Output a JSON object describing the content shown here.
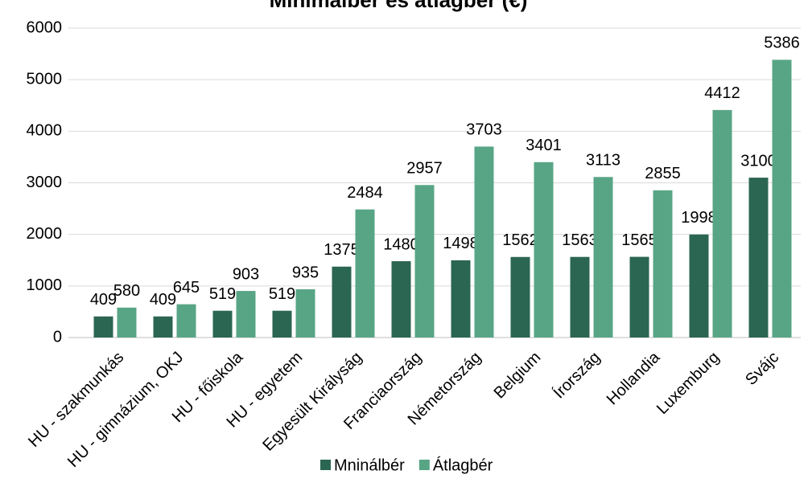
{
  "chart_data": {
    "type": "bar",
    "title": "Minimálbér és átlagbér (€)",
    "categories": [
      "HU - szakmunkás",
      "HU - gimnázium, OKJ",
      "HU - főiskola",
      "HU - egyetem",
      "Egyesült Királyság",
      "Franciaország",
      "Németország",
      "Belgium",
      "Írország",
      "Hollandia",
      "Luxemburg",
      "Svájc"
    ],
    "series": [
      {
        "name": "Mninálbér",
        "color": "#2b6652",
        "values": [
          409,
          409,
          519,
          519,
          1375,
          1480,
          1498,
          1562,
          1563,
          1565,
          1998,
          3100
        ]
      },
      {
        "name": "Átlagbér",
        "color": "#58a586",
        "values": [
          580,
          645,
          903,
          935,
          2484,
          2957,
          3703,
          3401,
          3113,
          2855,
          4412,
          5386
        ]
      }
    ],
    "ylim": [
      0,
      6000
    ],
    "yticks": [
      0,
      1000,
      2000,
      3000,
      4000,
      5000,
      6000
    ],
    "grid": true,
    "legend": "bottom"
  }
}
